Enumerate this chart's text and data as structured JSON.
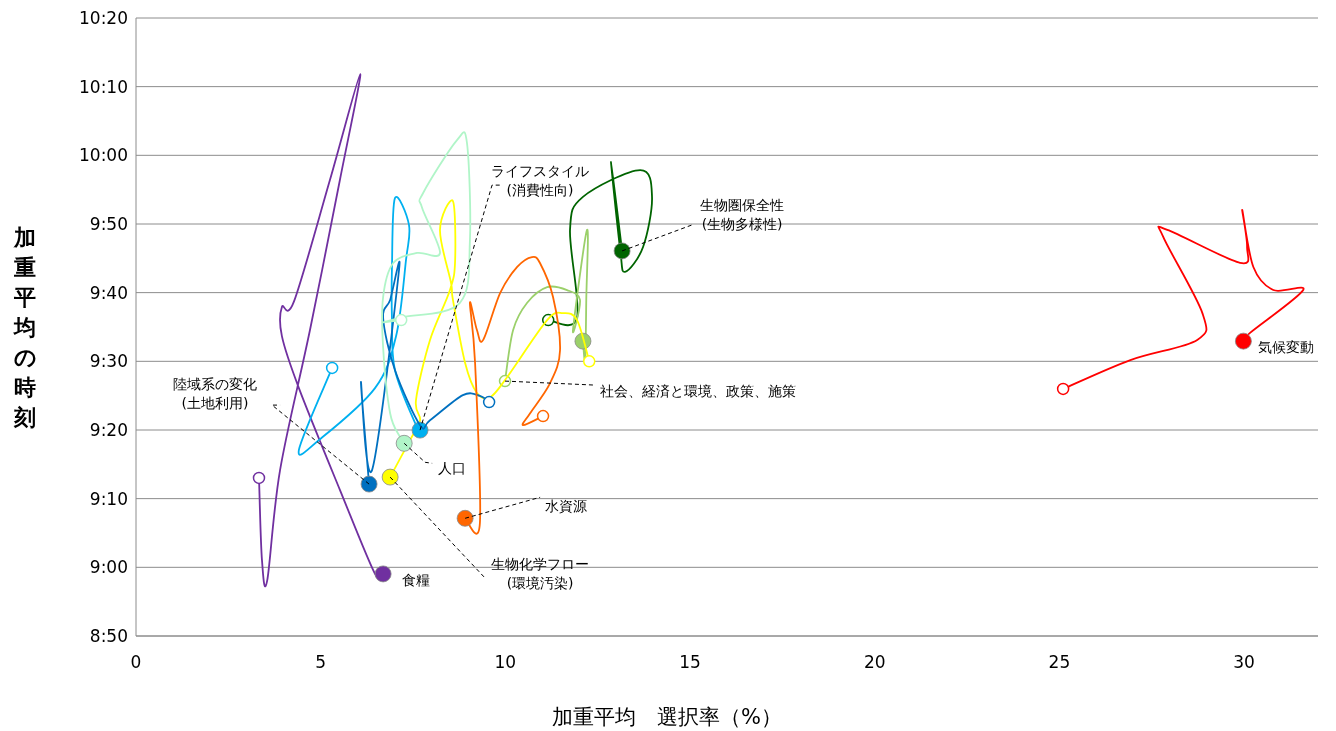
{
  "chart_data": {
    "type": "line",
    "xlabel": "加重平均　選択率（%）",
    "ylabel": "加重平均の時刻",
    "xlim": [
      0,
      32
    ],
    "xticks": [
      0,
      5,
      10,
      15,
      20,
      25,
      30
    ],
    "ylim": [
      8.8333,
      10.3333
    ],
    "yticks": [
      {
        "value": 8.8333,
        "label": "8:50"
      },
      {
        "value": 9,
        "label": "9:00"
      },
      {
        "value": 9.1667,
        "label": "9:10"
      },
      {
        "value": 9.3333,
        "label": "9:20"
      },
      {
        "value": 9.5,
        "label": "9:30"
      },
      {
        "value": 9.6667,
        "label": "9:40"
      },
      {
        "value": 9.8333,
        "label": "9:50"
      },
      {
        "value": 10,
        "label": "10:00"
      },
      {
        "value": 10.1667,
        "label": "10:10"
      },
      {
        "value": 10.3333,
        "label": "10:20"
      }
    ],
    "grid": "y",
    "line_style": "solid",
    "series": [
      {
        "color": "#7030a0",
        "x": [
          3.33,
          3.41,
          3.55,
          3.9,
          4.71,
          5.52,
          6.07,
          5.25,
          4.28,
          3.95,
          3.95,
          4.41,
          5.52,
          6.47,
          6.69
        ],
        "values": [
          9.217,
          9.018,
          8.967,
          9.236,
          9.576,
          9.94,
          10.197,
          9.94,
          9.646,
          9.632,
          9.561,
          9.435,
          9.188,
          8.984,
          8.984
        ]
      },
      {
        "color": "#ff0000",
        "x": [
          25.1,
          26.92,
          28.73,
          28.87,
          27.81,
          27.92,
          29.89,
          30.08,
          29.95,
          30.25,
          30.79,
          31.6,
          30.16,
          29.98
        ],
        "values": [
          9.433,
          9.503,
          9.552,
          9.617,
          9.802,
          9.819,
          9.739,
          9.778,
          9.867,
          9.729,
          9.673,
          9.673,
          9.569,
          9.549
        ]
      },
      {
        "color": "#006400",
        "x": [
          11.16,
          11.94,
          11.75,
          12.1,
          13.65,
          13.97,
          13.73,
          13.24,
          13.11,
          12.86,
          13.16
        ],
        "values": [
          9.6,
          9.605,
          9.819,
          9.899,
          9.964,
          9.899,
          9.778,
          9.717,
          9.77,
          9.984,
          9.768
        ]
      },
      {
        "color": "#9bd06a",
        "x": [
          9.99,
          10.21,
          10.59,
          11.13,
          11.67,
          12.02,
          11.83,
          12.21,
          12.19,
          12.16,
          12.1
        ],
        "values": [
          9.452,
          9.576,
          9.642,
          9.68,
          9.673,
          9.649,
          9.576,
          9.819,
          9.649,
          9.503,
          9.549
        ]
      },
      {
        "color": "#ffff00",
        "x": [
          12.27,
          11.94,
          11.56,
          11.13,
          10.05,
          9.59,
          9.23,
          8.91,
          8.58,
          8.53,
          8.23,
          8.58,
          8.64,
          8.5,
          7.96,
          7.58,
          7.69,
          7.42,
          6.88
        ],
        "values": [
          9.5,
          9.6,
          9.617,
          9.6,
          9.462,
          9.413,
          9.423,
          9.496,
          9.649,
          9.69,
          9.819,
          9.889,
          9.746,
          9.673,
          9.552,
          9.406,
          9.357,
          9.309,
          9.219
        ]
      },
      {
        "color": "#00b0f0",
        "x": [
          5.31,
          4.41,
          4.98,
          6.47,
          7.04,
          7.31,
          7.39,
          7.01,
          6.93,
          6.93,
          7.01,
          7.58,
          7.69
        ],
        "values": [
          9.484,
          9.285,
          9.311,
          9.435,
          9.561,
          9.746,
          9.831,
          9.896,
          9.729,
          9.603,
          9.479,
          9.345,
          9.333
        ]
      },
      {
        "color": "#0070c0",
        "x": [
          9.56,
          9.31,
          8.85,
          7.96,
          7.69,
          7.01,
          6.69,
          6.88,
          7.12,
          6.39,
          6.09,
          6.31
        ],
        "values": [
          9.401,
          9.416,
          9.418,
          9.357,
          9.345,
          9.479,
          9.605,
          9.649,
          9.721,
          9.236,
          9.45,
          9.202
        ]
      },
      {
        "color": "#b0f5c8",
        "x": [
          7.18,
          6.69,
          7.23,
          8.77,
          9.04,
          8.96,
          8.69,
          7.77,
          7.74,
          8.23,
          7.61,
          6.96,
          6.69,
          6.69,
          6.88,
          7.15,
          7.26
        ],
        "values": [
          9.6,
          9.595,
          9.607,
          9.642,
          9.794,
          10.03,
          10.037,
          9.908,
          9.874,
          9.763,
          9.763,
          9.738,
          9.656,
          9.534,
          9.374,
          9.316,
          9.301
        ]
      },
      {
        "color": "#ff6600",
        "x": [
          11.02,
          10.48,
          10.67,
          11.21,
          11.48,
          11.29,
          10.94,
          10.72,
          10.32,
          9.86,
          9.4,
          9.23,
          9.04,
          9.18,
          9.31,
          8.91
        ],
        "values": [
          9.367,
          9.345,
          9.374,
          9.447,
          9.527,
          9.656,
          9.738,
          9.753,
          9.729,
          9.666,
          9.552,
          9.576,
          9.642,
          9.496,
          9.107,
          9.119
        ]
      }
    ],
    "annotations": [
      {
        "text": "ライフスタイル\n(消費性向)",
        "x": 7.69,
        "y": 9.333
      },
      {
        "text": "生物圏保全性\n(生物多様性)",
        "x": 13.16,
        "y": 9.768
      },
      {
        "text": "気候変動",
        "x": 29.98,
        "y": 9.549
      },
      {
        "text": "社会、経済と環境、政策、施策",
        "x": 9.99,
        "y": 9.452
      },
      {
        "text": "陸域系の変化\n(土地利用)",
        "x": 6.31,
        "y": 9.202
      },
      {
        "text": "人口",
        "x": 7.26,
        "y": 9.301
      },
      {
        "text": "水資源",
        "x": 8.91,
        "y": 9.119
      },
      {
        "text": "生物化学フロー\n(環境汚染)",
        "x": 6.88,
        "y": 9.219
      },
      {
        "text": "食糧",
        "x": 6.69,
        "y": 8.984
      }
    ]
  }
}
